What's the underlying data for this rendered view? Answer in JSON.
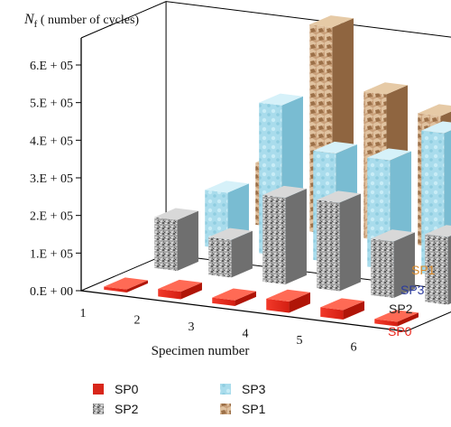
{
  "chart_data": {
    "type": "bar",
    "categories": [
      "1",
      "2",
      "3",
      "4",
      "5",
      "6"
    ],
    "ylabel_symbol": "N",
    "ylabel_sub": "f",
    "ylabel_rest": " ( number of cycles)",
    "xlabel": "Specimen number",
    "y_ticks": [
      "0.E + 00",
      "1.E + 05",
      "2.E + 05",
      "3.E + 05",
      "4.E + 05",
      "5.E + 05",
      "6.E + 05"
    ],
    "ylim": [
      0,
      600000
    ],
    "grid": false,
    "legend_position": "bottom",
    "series": [
      {
        "name": "SP0",
        "values": [
          8000,
          20000,
          15000,
          30000,
          25000,
          12000
        ]
      },
      {
        "name": "SP2",
        "values": [
          135000,
          100000,
          230000,
          235000,
          150000,
          180000
        ]
      },
      {
        "name": "SP3",
        "values": [
          150000,
          400000,
          290000,
          290000,
          380000,
          350000
        ]
      },
      {
        "name": "SP1",
        "values": [
          165000,
          550000,
          390000,
          350000,
          530000,
          340000
        ]
      }
    ],
    "legend_entries": [
      "SP0",
      "SP2",
      "SP3",
      "SP1"
    ],
    "row_label_colors": {
      "SP0": "#e8251b",
      "SP2": "#222222",
      "SP3": "#2a3a9c",
      "SP1": "#d98a2a"
    }
  }
}
